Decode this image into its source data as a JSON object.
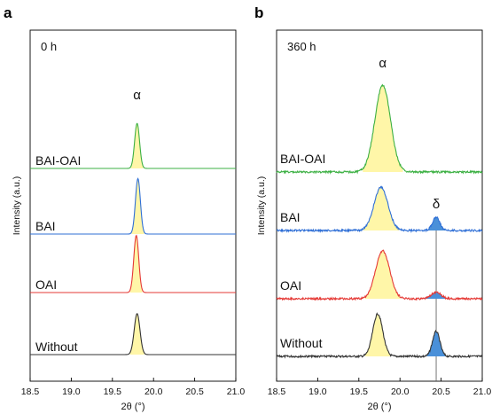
{
  "chart_data": [
    {
      "type": "line",
      "panel_label": "a",
      "annotation": "0 h",
      "xlabel": "2θ (°)",
      "ylabel": "Intensity (a.u.)",
      "xlim": [
        18.5,
        21.0
      ],
      "xticks": [
        "18.5",
        "19.0",
        "19.5",
        "20.0",
        "20.5",
        "21.0"
      ],
      "grid": false,
      "peak_labels": [
        {
          "text": "α",
          "x": 19.8
        }
      ],
      "series": [
        {
          "name": "BAI-OAI",
          "color": "#3cb043",
          "peaks": [
            {
              "center": 19.8,
              "height": 0.82,
              "width": 0.03,
              "fill": "#fff6a8"
            }
          ]
        },
        {
          "name": "BAI",
          "color": "#2f6fd6",
          "peaks": [
            {
              "center": 19.81,
              "height": 0.92,
              "width": 0.03,
              "fill": "#fff6a8"
            }
          ]
        },
        {
          "name": "OAI",
          "color": "#e53935",
          "peaks": [
            {
              "center": 19.79,
              "height": 0.92,
              "width": 0.03,
              "fill": "#fff6a8"
            }
          ]
        },
        {
          "name": "Without",
          "color": "#333333",
          "peaks": [
            {
              "center": 19.8,
              "height": 0.68,
              "width": 0.035,
              "fill": "#fff6a8"
            }
          ]
        }
      ]
    },
    {
      "type": "line",
      "panel_label": "b",
      "annotation": "360 h",
      "xlabel": "2θ (°)",
      "ylabel": "Intensity (a.u.)",
      "xlim": [
        18.5,
        21.0
      ],
      "xticks": [
        "18.5",
        "19.0",
        "19.5",
        "20.0",
        "20.5",
        "21.0"
      ],
      "grid": false,
      "reference_line_x": 20.44,
      "peak_labels": [
        {
          "text": "α",
          "x": 19.79
        },
        {
          "text": "δ",
          "x": 20.44
        }
      ],
      "series": [
        {
          "name": "BAI-OAI",
          "color": "#3cb043",
          "peaks": [
            {
              "center": 19.79,
              "height": 1.25,
              "width": 0.095,
              "fill": "#fff6a8"
            }
          ]
        },
        {
          "name": "BAI",
          "color": "#2f6fd6",
          "peaks": [
            {
              "center": 19.77,
              "height": 0.72,
              "width": 0.085,
              "fill": "#fff6a8"
            },
            {
              "center": 20.44,
              "height": 0.22,
              "width": 0.045,
              "fill": "#4a90d9"
            }
          ]
        },
        {
          "name": "OAI",
          "color": "#e53935",
          "peaks": [
            {
              "center": 19.79,
              "height": 0.75,
              "width": 0.085,
              "fill": "#fff6a8"
            },
            {
              "center": 20.44,
              "height": 0.1,
              "width": 0.06,
              "fill": "#4a90d9"
            }
          ]
        },
        {
          "name": "Without",
          "color": "#333333",
          "peaks": [
            {
              "center": 19.73,
              "height": 0.75,
              "width": 0.06,
              "fill": "#fff6a8"
            },
            {
              "center": 20.44,
              "height": 0.44,
              "width": 0.045,
              "fill": "#4a90d9"
            }
          ]
        }
      ]
    }
  ]
}
